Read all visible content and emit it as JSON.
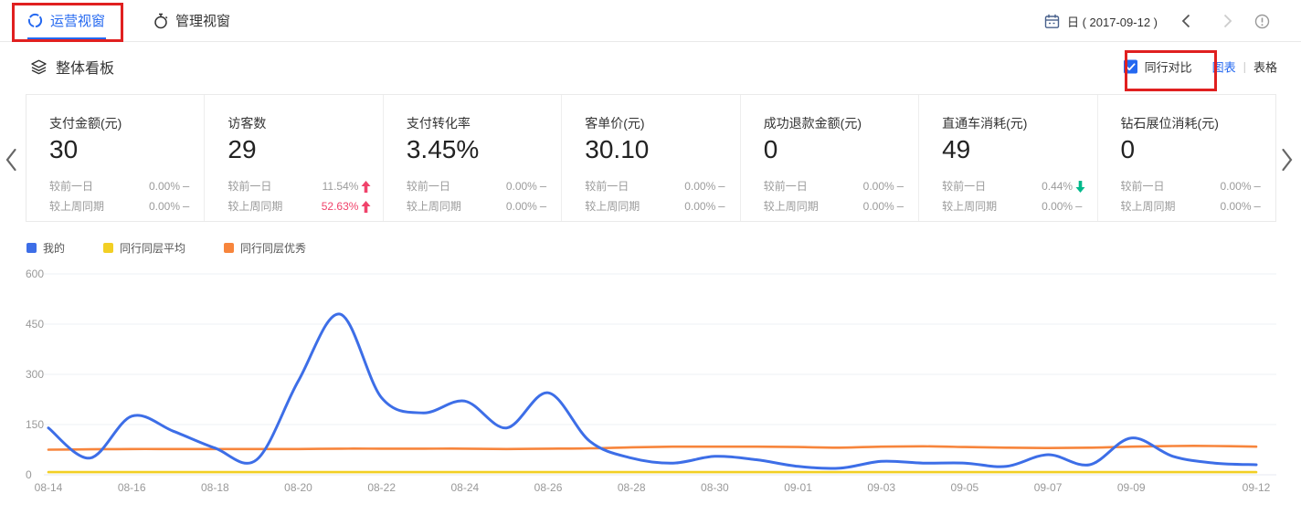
{
  "colors": {
    "accent": "#2468F0",
    "trend_up_red": "#F0436B",
    "trend_down_green": "#00B98B",
    "annotation_red": "#E02020",
    "axis_label_gray": "#999999",
    "gridline": "#EEF0F6"
  },
  "header": {
    "tabs": [
      {
        "label": "运营视窗",
        "active": true
      },
      {
        "label": "管理视窗",
        "active": false
      }
    ],
    "date_picker": {
      "granularity_label": "日 ( 2017-09-12 )"
    },
    "icons": {
      "operations_tab": "shield-cycle-icon",
      "management_tab": "stopwatch-icon",
      "date": "calendar-icon",
      "prev": "chevron-left-icon",
      "next": "chevron-right-icon",
      "help": "info-circle-icon"
    }
  },
  "section": {
    "title": "整体看板",
    "title_icon": "layers-icon",
    "peer_compare": {
      "label": "同行对比",
      "checked": true
    },
    "view_toggle": {
      "options": [
        "图表",
        "表格"
      ],
      "divider": "|",
      "active": "图表"
    }
  },
  "kpi_cards": [
    {
      "title": "支付金额(元)",
      "value": "30",
      "rows": [
        {
          "label": "较前一日",
          "value": "0.00%",
          "trend": "flat",
          "highlight": false
        },
        {
          "label": "较上周同期",
          "value": "0.00%",
          "trend": "flat",
          "highlight": false
        }
      ]
    },
    {
      "title": "访客数",
      "value": "29",
      "rows": [
        {
          "label": "较前一日",
          "value": "11.54%",
          "trend": "up",
          "highlight": false
        },
        {
          "label": "较上周同期",
          "value": "52.63%",
          "trend": "up",
          "highlight": true
        }
      ]
    },
    {
      "title": "支付转化率",
      "value": "3.45%",
      "rows": [
        {
          "label": "较前一日",
          "value": "0.00%",
          "trend": "flat",
          "highlight": false
        },
        {
          "label": "较上周同期",
          "value": "0.00%",
          "trend": "flat",
          "highlight": false
        }
      ]
    },
    {
      "title": "客单价(元)",
      "value": "30.10",
      "rows": [
        {
          "label": "较前一日",
          "value": "0.00%",
          "trend": "flat",
          "highlight": false
        },
        {
          "label": "较上周同期",
          "value": "0.00%",
          "trend": "flat",
          "highlight": false
        }
      ]
    },
    {
      "title": "成功退款金额(元)",
      "value": "0",
      "rows": [
        {
          "label": "较前一日",
          "value": "0.00%",
          "trend": "flat",
          "highlight": false
        },
        {
          "label": "较上周同期",
          "value": "0.00%",
          "trend": "flat",
          "highlight": false
        }
      ]
    },
    {
      "title": "直通车消耗(元)",
      "value": "49",
      "rows": [
        {
          "label": "较前一日",
          "value": "0.44%",
          "trend": "down",
          "highlight": false
        },
        {
          "label": "较上周同期",
          "value": "0.00%",
          "trend": "flat",
          "highlight": false
        }
      ]
    },
    {
      "title": "钻石展位消耗(元)",
      "value": "0",
      "rows": [
        {
          "label": "较前一日",
          "value": "0.00%",
          "trend": "flat",
          "highlight": false
        },
        {
          "label": "较上周同期",
          "value": "0.00%",
          "trend": "flat",
          "highlight": false
        }
      ]
    }
  ],
  "chart_data": {
    "type": "line",
    "title": "",
    "xlabel": "",
    "ylabel": "",
    "ylim": [
      0,
      600
    ],
    "yticks": [
      0,
      150,
      300,
      450,
      600
    ],
    "grid": true,
    "legend_position": "top-left",
    "x": [
      "08-14",
      "08-15",
      "08-16",
      "08-17",
      "08-18",
      "08-19",
      "08-20",
      "08-21",
      "08-22",
      "08-23",
      "08-24",
      "08-25",
      "08-26",
      "08-27",
      "08-28",
      "08-29",
      "08-30",
      "08-31",
      "09-01",
      "09-02",
      "09-03",
      "09-04",
      "09-05",
      "09-06",
      "09-07",
      "09-08",
      "09-09",
      "09-10",
      "09-11",
      "09-12"
    ],
    "x_ticks": [
      {
        "i": 0,
        "label": "08-14"
      },
      {
        "i": 2,
        "label": "08-16"
      },
      {
        "i": 4,
        "label": "08-18"
      },
      {
        "i": 6,
        "label": "08-20"
      },
      {
        "i": 8,
        "label": "08-22"
      },
      {
        "i": 10,
        "label": "08-24"
      },
      {
        "i": 12,
        "label": "08-26"
      },
      {
        "i": 14,
        "label": "08-28"
      },
      {
        "i": 16,
        "label": "08-30"
      },
      {
        "i": 18,
        "label": "09-01"
      },
      {
        "i": 20,
        "label": "09-03"
      },
      {
        "i": 22,
        "label": "09-05"
      },
      {
        "i": 24,
        "label": "09-07"
      },
      {
        "i": 26,
        "label": "09-09"
      },
      {
        "i": 29,
        "label": "09-12"
      }
    ],
    "series": [
      {
        "name": "我的",
        "color": "#3D6EE7",
        "values": [
          140,
          50,
          175,
          130,
          80,
          45,
          280,
          480,
          230,
          185,
          220,
          140,
          245,
          100,
          50,
          35,
          55,
          45,
          25,
          20,
          40,
          35,
          35,
          25,
          60,
          30,
          110,
          55,
          35,
          30
        ]
      },
      {
        "name": "同行同层平均",
        "color": "#F2CF24",
        "values": [
          8,
          8,
          8,
          8,
          8,
          8,
          8,
          8,
          8,
          8,
          8,
          8,
          8,
          8,
          8,
          8,
          8,
          8,
          8,
          8,
          8,
          8,
          8,
          8,
          8,
          8,
          8,
          8,
          8,
          8
        ]
      },
      {
        "name": "同行同层优秀",
        "color": "#F7853C",
        "values": [
          75,
          76,
          77,
          77,
          77,
          77,
          77,
          78,
          78,
          78,
          78,
          77,
          78,
          79,
          82,
          84,
          84,
          84,
          83,
          81,
          84,
          85,
          83,
          81,
          80,
          81,
          84,
          86,
          86,
          84
        ]
      }
    ]
  }
}
